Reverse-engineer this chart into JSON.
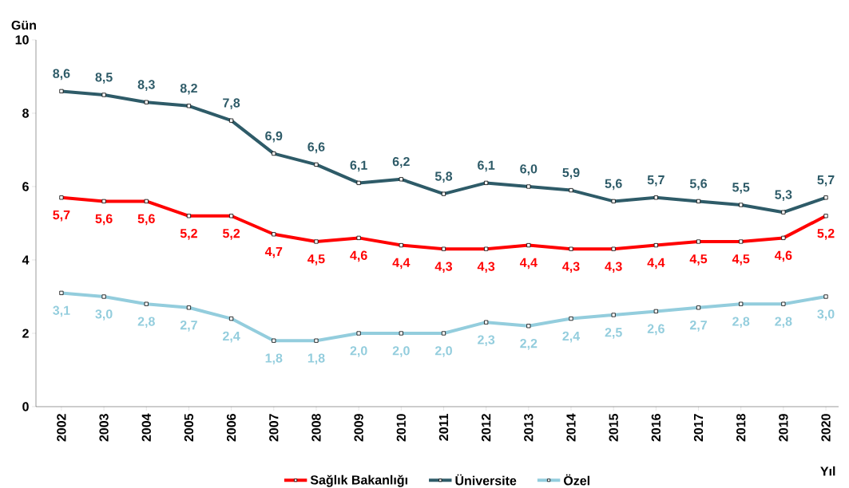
{
  "chart_data": {
    "type": "line",
    "ylabel": "Gün",
    "xlabel": "Yıl",
    "categories": [
      "2002",
      "2003",
      "2004",
      "2005",
      "2006",
      "2007",
      "2008",
      "2009",
      "2010",
      "2011",
      "2012",
      "2013",
      "2014",
      "2015",
      "2016",
      "2017",
      "2018",
      "2019",
      "2020"
    ],
    "series": [
      {
        "name": "Sağlık Bakanlığı",
        "color": "#ff0000",
        "values": [
          5.7,
          5.6,
          5.6,
          5.2,
          5.2,
          4.7,
          4.5,
          4.6,
          4.4,
          4.3,
          4.3,
          4.4,
          4.3,
          4.3,
          4.4,
          4.5,
          4.5,
          4.6,
          5.2
        ],
        "value_labels": [
          "5,7",
          "5,6",
          "5,6",
          "5,2",
          "5,2",
          "4,7",
          "4,5",
          "4,6",
          "4,4",
          "4,3",
          "4,3",
          "4,4",
          "4,3",
          "4,3",
          "4,4",
          "4,5",
          "4,5",
          "4,6",
          "5,2"
        ]
      },
      {
        "name": "Üniversite",
        "color": "#2e5b68",
        "values": [
          8.6,
          8.5,
          8.3,
          8.2,
          7.8,
          6.9,
          6.6,
          6.1,
          6.2,
          5.8,
          6.1,
          6.0,
          5.9,
          5.6,
          5.7,
          5.6,
          5.5,
          5.3,
          5.7
        ],
        "value_labels": [
          "8,6",
          "8,5",
          "8,3",
          "8,2",
          "7,8",
          "6,9",
          "6,6",
          "6,1",
          "6,2",
          "5,8",
          "6,1",
          "6,0",
          "5,9",
          "5,6",
          "5,7",
          "5,6",
          "5,5",
          "5,3",
          "5,7"
        ]
      },
      {
        "name": "Özel",
        "color": "#93cddd",
        "values": [
          3.1,
          3.0,
          2.8,
          2.7,
          2.4,
          1.8,
          1.8,
          2.0,
          2.0,
          2.0,
          2.3,
          2.2,
          2.4,
          2.5,
          2.6,
          2.7,
          2.8,
          2.8,
          3.0
        ],
        "value_labels": [
          "3,1",
          "3,0",
          "2,8",
          "2,7",
          "2,4",
          "1,8",
          "1,8",
          "2,0",
          "2,0",
          "2,0",
          "2,3",
          "2,2",
          "2,4",
          "2,5",
          "2,6",
          "2,7",
          "2,8",
          "2,8",
          "3,0"
        ]
      }
    ],
    "ylim": [
      0,
      10
    ],
    "yticks": [
      0,
      2,
      4,
      6,
      8,
      10
    ],
    "grid": false,
    "legend": "bottom",
    "marker": "square",
    "line_style": "solid"
  }
}
